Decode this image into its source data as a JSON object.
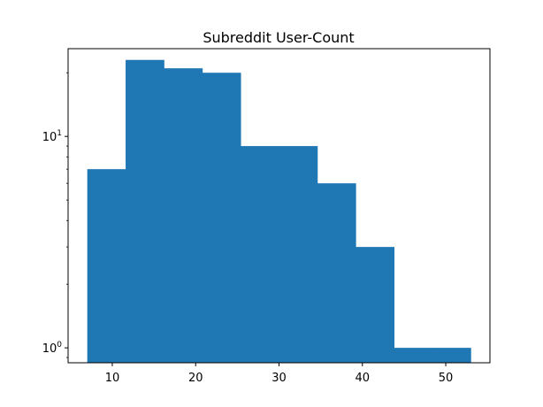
{
  "chart_data": {
    "type": "bar",
    "title": "Subreddit User-Count",
    "xlabel": "",
    "ylabel": "",
    "y_scale": "log",
    "xlim": [
      4.7,
      55.3
    ],
    "ylim": [
      0.85,
      26
    ],
    "x_ticks": [
      {
        "value": 10,
        "label": "10"
      },
      {
        "value": 20,
        "label": "20"
      },
      {
        "value": 30,
        "label": "30"
      },
      {
        "value": 40,
        "label": "40"
      },
      {
        "value": 50,
        "label": "50"
      }
    ],
    "y_ticks": [
      {
        "value": 1,
        "base": "10",
        "exp": "0"
      },
      {
        "value": 10,
        "base": "10",
        "exp": "1"
      }
    ],
    "grid": false,
    "legend": "none",
    "bar_color": "#1f77b4",
    "bins": [
      {
        "x0": 7,
        "x1": 11.6,
        "count": 7
      },
      {
        "x0": 11.6,
        "x1": 16.2,
        "count": 23
      },
      {
        "x0": 16.2,
        "x1": 20.8,
        "count": 21
      },
      {
        "x0": 20.8,
        "x1": 25.4,
        "count": 20
      },
      {
        "x0": 25.4,
        "x1": 30.0,
        "count": 9
      },
      {
        "x0": 30.0,
        "x1": 34.6,
        "count": 9
      },
      {
        "x0": 34.6,
        "x1": 39.2,
        "count": 6
      },
      {
        "x0": 39.2,
        "x1": 43.8,
        "count": 3
      },
      {
        "x0": 43.8,
        "x1": 48.4,
        "count": 1
      },
      {
        "x0": 48.4,
        "x1": 53.0,
        "count": 1
      }
    ]
  }
}
